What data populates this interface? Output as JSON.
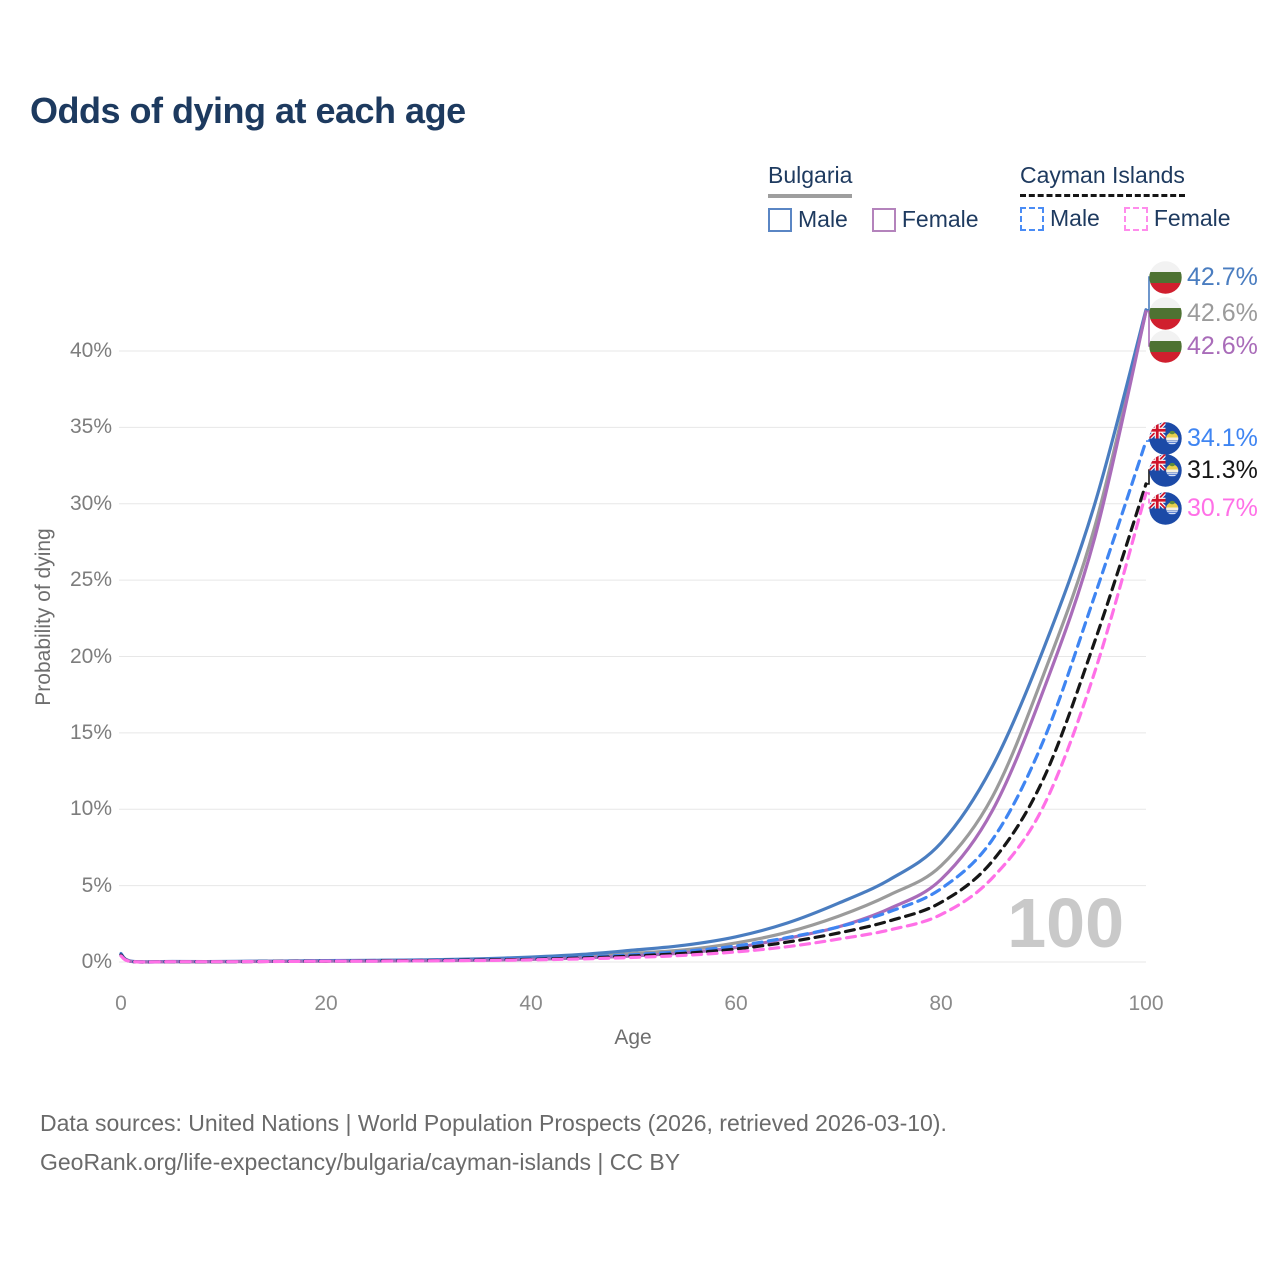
{
  "title": "Odds of dying at each age",
  "watermark": "100",
  "legend": {
    "groups": [
      {
        "name": "Bulgaria",
        "underline_color": "#9e9e9e",
        "underline_style": "solid",
        "items": [
          {
            "label": "Male",
            "swatch_color": "#5a86c4",
            "swatch_style": "solid"
          },
          {
            "label": "Female",
            "swatch_color": "#b483bc",
            "swatch_style": "solid"
          }
        ]
      },
      {
        "name": "Cayman Islands",
        "underline_color": "#161616",
        "underline_style": "dashed",
        "items": [
          {
            "label": "Male",
            "swatch_color": "#4a8cf5",
            "swatch_style": "dashed"
          },
          {
            "label": "Female",
            "swatch_color": "#ff8cec",
            "swatch_style": "dashed"
          }
        ]
      }
    ]
  },
  "chart_data": {
    "type": "line",
    "title": "Odds of dying at each age",
    "xlabel": "Age",
    "ylabel": "Probability of dying",
    "xlim": [
      0,
      100
    ],
    "ylim": [
      0,
      44
    ],
    "grid": "horizontal",
    "x_ticks": [
      "0",
      "20",
      "40",
      "60",
      "80",
      "100"
    ],
    "x_tick_values": [
      0,
      20,
      40,
      60,
      80,
      100
    ],
    "y_ticks": [
      "0%",
      "5%",
      "10%",
      "15%",
      "20%",
      "25%",
      "30%",
      "35%",
      "40%"
    ],
    "y_tick_values": [
      0,
      5,
      10,
      15,
      20,
      25,
      30,
      35,
      40
    ],
    "ages": [
      0,
      1,
      5,
      10,
      15,
      20,
      25,
      30,
      35,
      40,
      45,
      50,
      55,
      60,
      65,
      70,
      75,
      80,
      85,
      90,
      95,
      100
    ],
    "series": [
      {
        "id": "bg_total",
        "name": "Bulgaria Both sexes",
        "color": "#9b9b9b",
        "dash": "solid",
        "flag": "bulgaria",
        "end_label": "42.6%",
        "values": [
          0.5,
          0.04,
          0.02,
          0.02,
          0.05,
          0.07,
          0.08,
          0.11,
          0.16,
          0.24,
          0.38,
          0.57,
          0.8,
          1.25,
          1.95,
          3.0,
          4.4,
          6.3,
          10.8,
          18.8,
          28.5,
          42.6
        ]
      },
      {
        "id": "bg_male",
        "name": "Bulgaria Male",
        "color": "#4a7dc0",
        "dash": "solid",
        "flag": "bulgaria",
        "end_label": "42.7%",
        "values": [
          0.55,
          0.05,
          0.03,
          0.03,
          0.06,
          0.09,
          0.11,
          0.14,
          0.21,
          0.32,
          0.5,
          0.78,
          1.1,
          1.65,
          2.55,
          3.85,
          5.4,
          7.8,
          12.8,
          20.5,
          30.0,
          42.7
        ]
      },
      {
        "id": "bg_female",
        "name": "Bulgaria Female",
        "color": "#a96cb9",
        "dash": "solid",
        "flag": "bulgaria",
        "end_label": "42.6%",
        "values": [
          0.45,
          0.04,
          0.02,
          0.02,
          0.04,
          0.05,
          0.06,
          0.08,
          0.11,
          0.17,
          0.26,
          0.4,
          0.6,
          0.95,
          1.55,
          2.3,
          3.5,
          5.4,
          9.9,
          17.8,
          27.8,
          42.6
        ]
      },
      {
        "id": "ci_male",
        "name": "Cayman Islands Male",
        "color": "#3f85f2",
        "dash": "dashed",
        "flag": "cayman-islands",
        "end_label": "34.1%",
        "values": [
          0.5,
          0.04,
          0.02,
          0.02,
          0.05,
          0.08,
          0.1,
          0.12,
          0.16,
          0.22,
          0.32,
          0.48,
          0.7,
          1.05,
          1.6,
          2.3,
          3.3,
          4.8,
          8.0,
          14.5,
          24.0,
          34.1
        ]
      },
      {
        "id": "ci_total",
        "name": "Cayman Islands Both sexes",
        "color": "#161616",
        "dash": "dashed",
        "flag": "cayman-islands",
        "end_label": "31.3%",
        "values": [
          0.45,
          0.04,
          0.02,
          0.02,
          0.04,
          0.06,
          0.08,
          0.1,
          0.13,
          0.18,
          0.26,
          0.39,
          0.57,
          0.85,
          1.3,
          1.9,
          2.7,
          3.9,
          6.6,
          12.0,
          21.0,
          31.3
        ]
      },
      {
        "id": "ci_female",
        "name": "Cayman Islands Female",
        "color": "#ff70e7",
        "dash": "dashed",
        "flag": "cayman-islands",
        "end_label": "30.7%",
        "values": [
          0.4,
          0.03,
          0.02,
          0.02,
          0.03,
          0.05,
          0.06,
          0.08,
          0.1,
          0.14,
          0.2,
          0.3,
          0.44,
          0.66,
          1.0,
          1.5,
          2.1,
          3.1,
          5.5,
          10.2,
          19.0,
          30.7
        ]
      }
    ]
  },
  "footer": {
    "line1": "Data sources: United Nations | World Population Prospects (2026, retrieved 2026-03-10).",
    "line2": "GeoRank.org/life-expectancy/bulgaria/cayman-islands | CC BY"
  }
}
